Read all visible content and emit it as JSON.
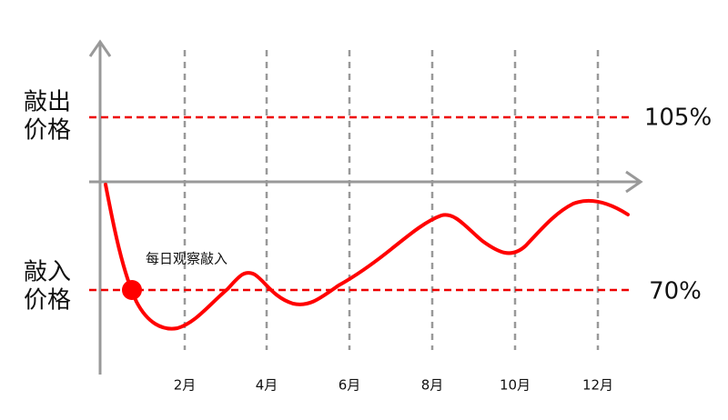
{
  "knock_out_label": [
    "敲出",
    "价格"
  ],
  "knock_in_label": [
    "敲入",
    "价格"
  ],
  "knock_out_level": "105%",
  "knock_in_level": "70%",
  "annotation": "每日观察敲入",
  "months": [
    "2月",
    "4月",
    "6月",
    "8月",
    "10月",
    "12月"
  ]
}
